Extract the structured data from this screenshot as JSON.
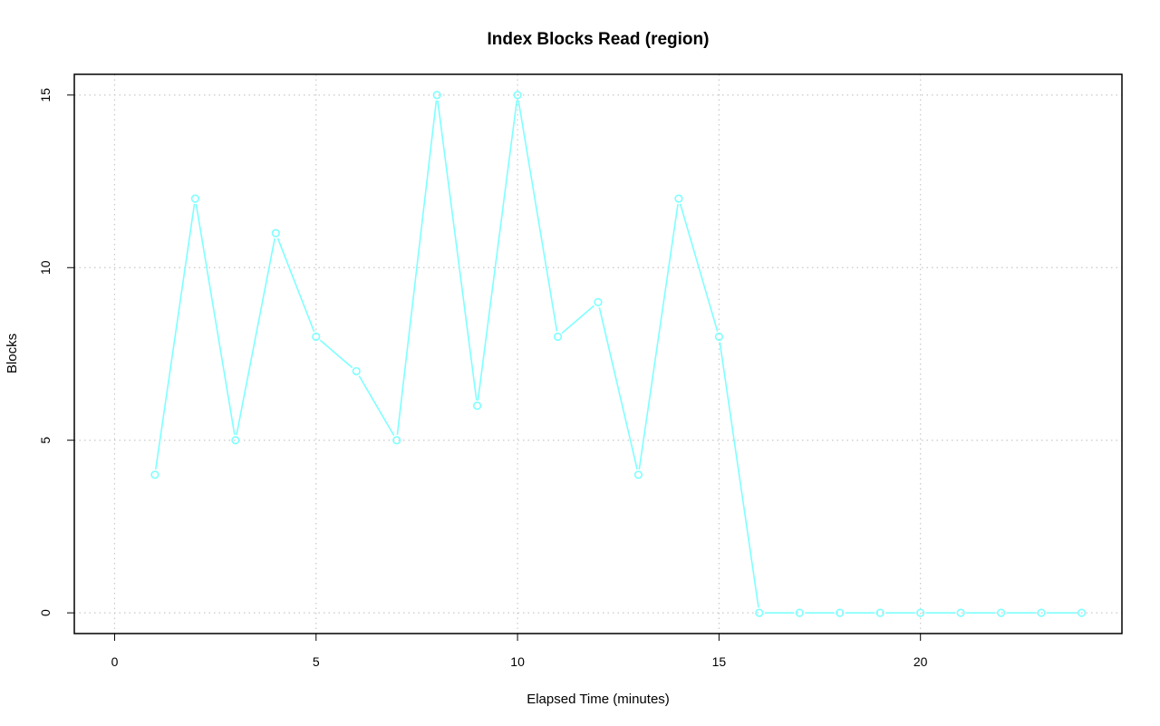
{
  "chart_data": {
    "type": "line",
    "title": "Index Blocks Read (region)",
    "xlabel": "Elapsed Time (minutes)",
    "ylabel": "Blocks",
    "xlim": [
      -1,
      25
    ],
    "ylim": [
      -0.6,
      15.6
    ],
    "x_ticks": [
      0,
      5,
      10,
      15,
      20
    ],
    "y_ticks": [
      0,
      5,
      10,
      15
    ],
    "grid": true,
    "series": [
      {
        "color": "#7fffff",
        "marker": "open-circle",
        "x": [
          1,
          2,
          3,
          4,
          5,
          6,
          7,
          8,
          9,
          10,
          11,
          12,
          13,
          14,
          15,
          16,
          17,
          18,
          19,
          20,
          21,
          22,
          23,
          24
        ],
        "y": [
          4,
          12,
          5,
          11,
          8,
          7,
          5,
          15,
          6,
          15,
          8,
          9,
          4,
          12,
          8,
          0,
          0,
          0,
          0,
          0,
          0,
          0,
          0,
          0
        ]
      }
    ]
  }
}
